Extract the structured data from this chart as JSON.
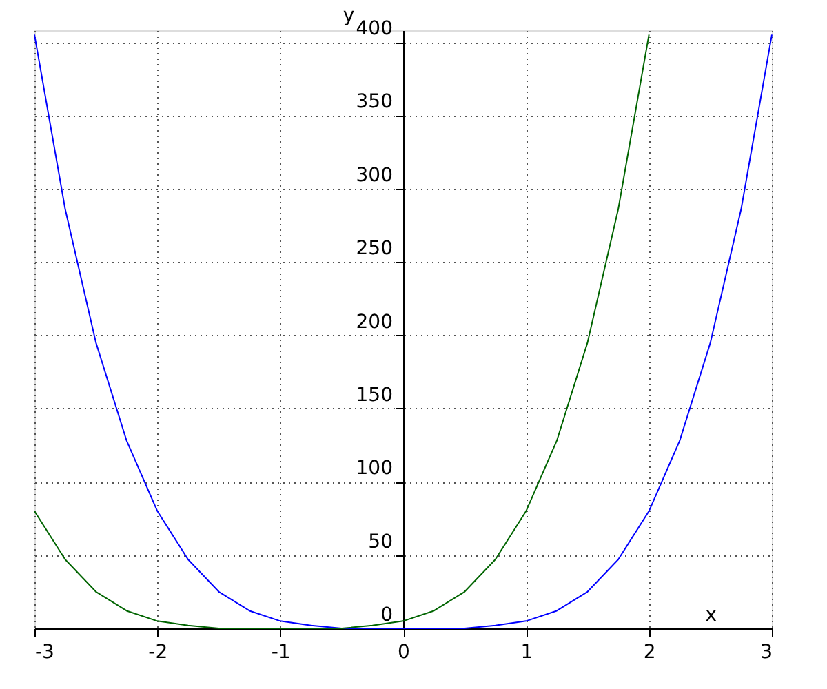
{
  "chart_data": {
    "type": "line",
    "xlabel": "x",
    "ylabel": "y",
    "xlim": [
      -3,
      3
    ],
    "ylim": [
      0,
      408
    ],
    "xticks": [
      -3,
      -2,
      -1,
      0,
      1,
      2,
      3
    ],
    "yticks": [
      0,
      50,
      100,
      150,
      200,
      250,
      300,
      350,
      400
    ],
    "grid": true,
    "marker": "none",
    "line_style": "solid",
    "series": [
      {
        "color": "#0000ff",
        "x": [
          -3,
          -2.75,
          -2.5,
          -2.25,
          -2,
          -1.75,
          -1.5,
          -1.25,
          -1,
          -0.75,
          -0.5,
          -0.25,
          0,
          0.25,
          0.5,
          0.75,
          1,
          1.25,
          1.5,
          1.75,
          2,
          2.25,
          2.5,
          2.75,
          3
        ],
        "values": [
          405,
          286,
          195,
          128,
          80,
          47,
          25,
          12,
          5,
          2,
          0,
          0,
          0,
          0,
          0,
          2,
          5,
          12,
          25,
          47,
          80,
          128,
          195,
          286,
          405
        ]
      },
      {
        "color": "#006400",
        "x": [
          -3,
          -2.75,
          -2.5,
          -2.25,
          -2,
          -1.75,
          -1.5,
          -1.25,
          -1,
          -0.75,
          -0.5,
          -0.25,
          0,
          0.25,
          0.5,
          0.75,
          1,
          1.25,
          1.5,
          1.75,
          2
        ],
        "values": [
          80,
          47,
          25,
          12,
          5,
          2,
          0,
          0,
          0,
          0,
          0,
          2,
          5,
          12,
          25,
          47,
          80,
          128,
          195,
          286,
          405
        ]
      }
    ]
  }
}
